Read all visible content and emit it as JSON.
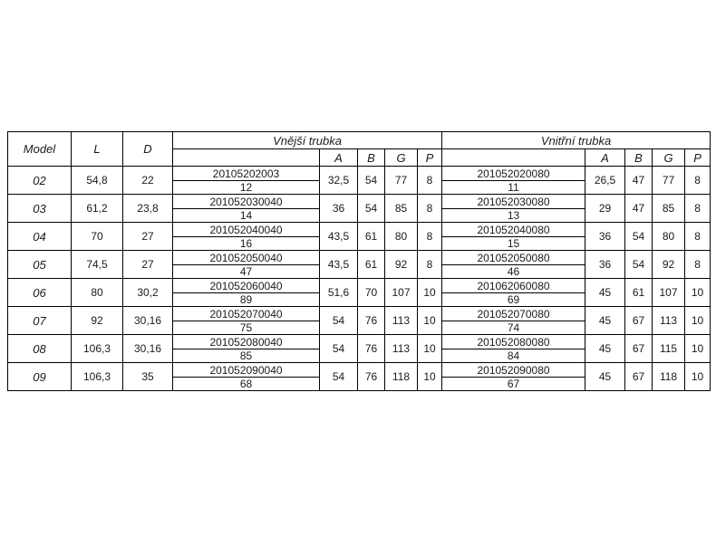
{
  "table": {
    "headers": {
      "model": "Model",
      "l": "L",
      "d": "D",
      "outer_group": "Vnější trubka",
      "inner_group": "Vnitřní trubka",
      "sub": [
        "A",
        "B",
        "G",
        "P"
      ]
    },
    "rows": [
      {
        "model": "02",
        "l": "54,8",
        "d": "22",
        "outer_code": "20105202003",
        "outer_sub": "12",
        "outer": [
          "32,5",
          "54",
          "77",
          "8"
        ],
        "inner_code": "201052020080",
        "inner_sub": "11",
        "inner": [
          "26,5",
          "47",
          "77",
          "8"
        ]
      },
      {
        "model": "03",
        "l": "61,2",
        "d": "23,8",
        "outer_code": "201052030040",
        "outer_sub": "14",
        "outer": [
          "36",
          "54",
          "85",
          "8"
        ],
        "inner_code": "201052030080",
        "inner_sub": "13",
        "inner": [
          "29",
          "47",
          "85",
          "8"
        ]
      },
      {
        "model": "04",
        "l": "70",
        "d": "27",
        "outer_code": "201052040040",
        "outer_sub": "16",
        "outer": [
          "43,5",
          "61",
          "80",
          "8"
        ],
        "inner_code": "201052040080",
        "inner_sub": "15",
        "inner": [
          "36",
          "54",
          "80",
          "8"
        ]
      },
      {
        "model": "05",
        "l": "74,5",
        "d": "27",
        "outer_code": "201052050040",
        "outer_sub": "47",
        "outer": [
          "43,5",
          "61",
          "92",
          "8"
        ],
        "inner_code": "201052050080",
        "inner_sub": "46",
        "inner": [
          "36",
          "54",
          "92",
          "8"
        ]
      },
      {
        "model": "06",
        "l": "80",
        "d": "30,2",
        "outer_code": "201052060040",
        "outer_sub": "89",
        "outer": [
          "51,6",
          "70",
          "107",
          "10"
        ],
        "inner_code": "201062060080",
        "inner_sub": "69",
        "inner": [
          "45",
          "61",
          "107",
          "10"
        ]
      },
      {
        "model": "07",
        "l": "92",
        "d": "30,16",
        "outer_code": "201052070040",
        "outer_sub": "75",
        "outer": [
          "54",
          "76",
          "113",
          "10"
        ],
        "inner_code": "201052070080",
        "inner_sub": "74",
        "inner": [
          "45",
          "67",
          "113",
          "10"
        ]
      },
      {
        "model": "08",
        "l": "106,3",
        "d": "30,16",
        "outer_code": "201052080040",
        "outer_sub": "85",
        "outer": [
          "54",
          "76",
          "113",
          "10"
        ],
        "inner_code": "201052080080",
        "inner_sub": "84",
        "inner": [
          "45",
          "67",
          "115",
          "10"
        ]
      },
      {
        "model": "09",
        "l": "106,3",
        "d": "35",
        "outer_code": "201052090040",
        "outer_sub": "68",
        "outer": [
          "54",
          "76",
          "118",
          "10"
        ],
        "inner_code": "201052090080",
        "inner_sub": "67",
        "inner": [
          "45",
          "67",
          "118",
          "10"
        ]
      }
    ]
  },
  "colors": {
    "background": "#ffffff",
    "border": "#000000",
    "text": "#1a1a1a"
  }
}
